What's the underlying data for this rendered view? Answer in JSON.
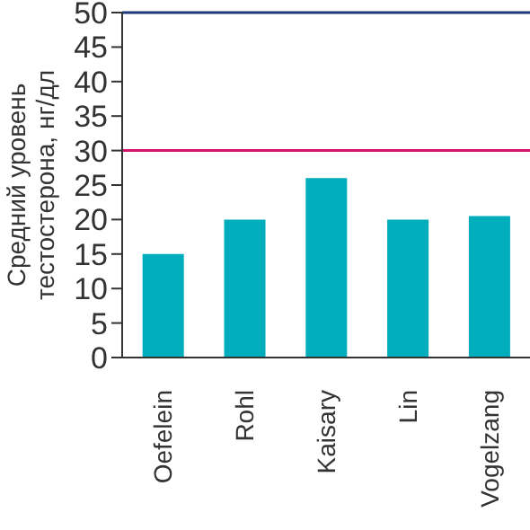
{
  "chart_data": {
    "type": "bar",
    "ylabel": "Средний уровень\nтестостерона, нг/дл",
    "categories": [
      "Oefelein",
      "Rohl",
      "Kaisary",
      "Lin",
      "Vogelzang"
    ],
    "values": [
      15,
      20,
      26,
      20,
      20.5
    ],
    "color": "#00adbd",
    "ylim": [
      0,
      50
    ],
    "yticks": [
      0,
      5,
      10,
      15,
      20,
      25,
      30,
      35,
      40,
      45,
      50
    ],
    "grid": false,
    "ref_lines": [
      {
        "axis": "y",
        "value": 30,
        "color": "#d4146e"
      },
      {
        "axis": "y",
        "value": 50,
        "color": "#1f3a7a"
      }
    ]
  }
}
